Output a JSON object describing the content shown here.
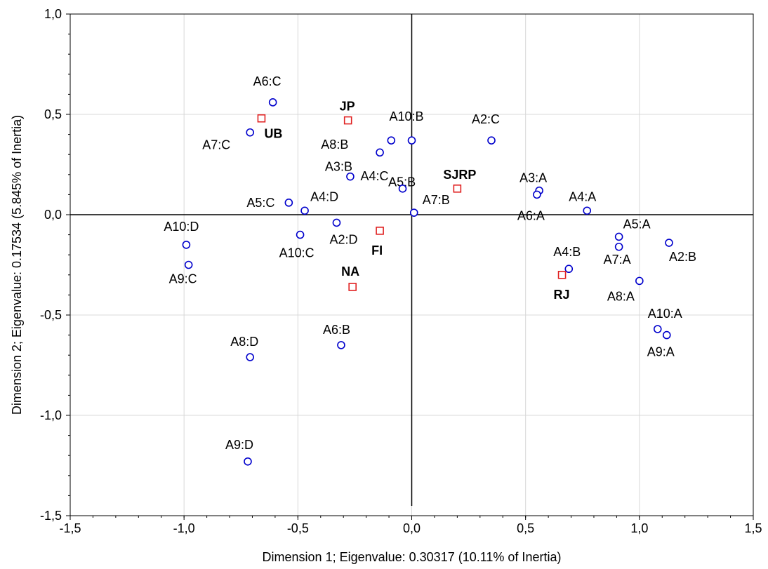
{
  "chart_data": {
    "type": "scatter",
    "title": "",
    "xlabel": "Dimension 1; Eigenvalue: 0.30317 (10.11% of Inertia)",
    "ylabel": "Dimension 2; Eigenvalue: 0.17534 (5.845% of Inertia)",
    "xlim": [
      -1.5,
      1.5
    ],
    "ylim": [
      -1.5,
      1.0
    ],
    "xticks": [
      -1.5,
      -1.0,
      -0.5,
      0.0,
      0.5,
      1.0,
      1.5
    ],
    "yticks": [
      -1.5,
      -1.0,
      -0.5,
      0.0,
      0.5,
      1.0
    ],
    "xtick_labels": [
      "-1,5",
      "-1,0",
      "-0,5",
      "0,0",
      "0,5",
      "1,0",
      "1,5"
    ],
    "ytick_labels": [
      "-1,5",
      "-1,0",
      "-0,5",
      "0,0",
      "0,5",
      "1,0"
    ],
    "grid": true,
    "colors": {
      "categories": "#0000cc",
      "groups": "#e02020"
    },
    "series": [
      {
        "marker": "circle",
        "points": [
          {
            "label": "A6:C",
            "x": -0.61,
            "y": 0.56
          },
          {
            "label": "A7:C",
            "x": -0.71,
            "y": 0.41
          },
          {
            "label": "A10:B",
            "x": 0.0,
            "y": 0.37
          },
          {
            "label": "A8:B",
            "x": -0.09,
            "y": 0.37
          },
          {
            "label": "A2:C",
            "x": 0.35,
            "y": 0.37
          },
          {
            "label": "A5:B",
            "x": -0.14,
            "y": 0.31
          },
          {
            "label": "A3:B",
            "x": -0.27,
            "y": 0.19
          },
          {
            "label": "A4:C",
            "x": -0.04,
            "y": 0.13
          },
          {
            "label": "A3:A",
            "x": 0.56,
            "y": 0.12
          },
          {
            "label": "A6:A",
            "x": 0.55,
            "y": 0.1
          },
          {
            "label": "A5:C",
            "x": -0.54,
            "y": 0.06
          },
          {
            "label": "A4:D",
            "x": -0.47,
            "y": 0.02
          },
          {
            "label": "A4:A",
            "x": 0.77,
            "y": 0.02
          },
          {
            "label": "A7:B",
            "x": 0.01,
            "y": 0.01
          },
          {
            "label": "A2:D",
            "x": -0.33,
            "y": -0.04
          },
          {
            "label": "A10:C",
            "x": -0.49,
            "y": -0.1
          },
          {
            "label": "A5:A",
            "x": 0.91,
            "y": -0.11
          },
          {
            "label": "A2:B",
            "x": 1.13,
            "y": -0.14
          },
          {
            "label": "A10:D",
            "x": -0.99,
            "y": -0.15
          },
          {
            "label": "A7:A",
            "x": 0.91,
            "y": -0.16
          },
          {
            "label": "A9:C",
            "x": -0.98,
            "y": -0.25
          },
          {
            "label": "A4:B",
            "x": 0.69,
            "y": -0.27
          },
          {
            "label": "A8:A",
            "x": 1.0,
            "y": -0.33
          },
          {
            "label": "A10:A",
            "x": 1.08,
            "y": -0.57
          },
          {
            "label": "A9:A",
            "x": 1.12,
            "y": -0.6
          },
          {
            "label": "A6:B",
            "x": -0.31,
            "y": -0.65
          },
          {
            "label": "A8:D",
            "x": -0.71,
            "y": -0.71
          },
          {
            "label": "A9:D",
            "x": -0.72,
            "y": -1.23
          }
        ]
      },
      {
        "marker": "square",
        "points": [
          {
            "label": "UB",
            "x": -0.66,
            "y": 0.48
          },
          {
            "label": "JP",
            "x": -0.28,
            "y": 0.47
          },
          {
            "label": "SJRP",
            "x": 0.2,
            "y": 0.13
          },
          {
            "label": "FI",
            "x": -0.14,
            "y": -0.08
          },
          {
            "label": "RJ",
            "x": 0.66,
            "y": -0.3
          },
          {
            "label": "NA",
            "x": -0.26,
            "y": -0.36
          }
        ]
      }
    ]
  }
}
